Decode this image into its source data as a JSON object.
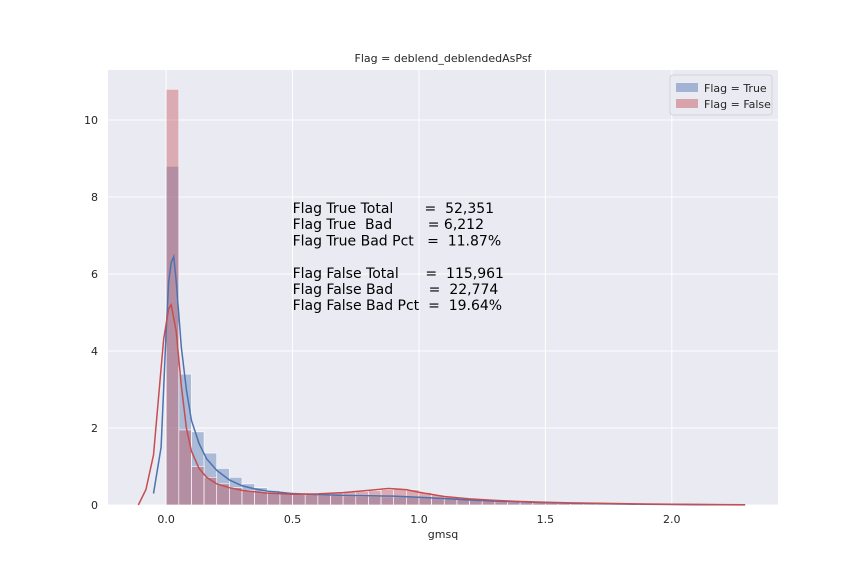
{
  "chart_data": {
    "type": "histogram",
    "title": "Flag = deblend_deblendedAsPsf",
    "xlabel": "gmsq",
    "ylabel": "",
    "xlim": [
      -0.23,
      2.42
    ],
    "ylim": [
      0,
      11.3
    ],
    "x_ticks": [
      0.0,
      0.5,
      1.0,
      1.5,
      2.0
    ],
    "x_tick_labels": [
      "0.0",
      "0.5",
      "1.0",
      "1.5",
      "2.0"
    ],
    "y_ticks": [
      0,
      2,
      4,
      6,
      8,
      10
    ],
    "y_tick_labels": [
      "0",
      "2",
      "4",
      "6",
      "8",
      "10"
    ],
    "grid": true,
    "legend_position": "top-right",
    "bin_width": 0.05,
    "series": [
      {
        "name": "Flag = True",
        "color": "#4c72b0",
        "hist_bin_starts": [
          0.0,
          0.05,
          0.1,
          0.15,
          0.2,
          0.25,
          0.3,
          0.35,
          0.4,
          0.45,
          0.5,
          0.55,
          0.6,
          0.65,
          0.7,
          0.75,
          0.8,
          0.85,
          0.9,
          0.95,
          1.0,
          1.05,
          1.1,
          1.15,
          1.2,
          1.25,
          1.3,
          1.35,
          1.4,
          1.45,
          1.5,
          1.55,
          1.6,
          1.65,
          1.7,
          1.75,
          1.8,
          1.85,
          1.9,
          1.95,
          2.0,
          2.05,
          2.1,
          2.15,
          2.2,
          2.25
        ],
        "hist_values": [
          8.8,
          3.4,
          1.9,
          1.35,
          0.95,
          0.72,
          0.55,
          0.45,
          0.38,
          0.33,
          0.3,
          0.27,
          0.25,
          0.24,
          0.23,
          0.22,
          0.22,
          0.21,
          0.21,
          0.2,
          0.19,
          0.18,
          0.16,
          0.14,
          0.12,
          0.1,
          0.08,
          0.07,
          0.06,
          0.05,
          0.04,
          0.035,
          0.03,
          0.025,
          0.02,
          0.018,
          0.015,
          0.012,
          0.01,
          0.008,
          0.007,
          0.006,
          0.005,
          0.004,
          0.003,
          0.002
        ],
        "kde_x": [
          -0.05,
          -0.02,
          0.0,
          0.01,
          0.02,
          0.03,
          0.04,
          0.06,
          0.08,
          0.1,
          0.13,
          0.16,
          0.2,
          0.25,
          0.3,
          0.35,
          0.4,
          0.5,
          0.6,
          0.7,
          0.8,
          0.9,
          1.0,
          1.1,
          1.2,
          1.3,
          1.4,
          1.5,
          1.6,
          1.7,
          1.8,
          1.9,
          2.0,
          2.1,
          2.2,
          2.29
        ],
        "kde_y": [
          0.3,
          1.5,
          4.5,
          5.8,
          6.3,
          6.45,
          5.8,
          4.1,
          3.0,
          2.2,
          1.6,
          1.2,
          0.9,
          0.65,
          0.5,
          0.42,
          0.36,
          0.3,
          0.27,
          0.25,
          0.24,
          0.23,
          0.2,
          0.17,
          0.13,
          0.1,
          0.08,
          0.06,
          0.045,
          0.035,
          0.025,
          0.018,
          0.012,
          0.008,
          0.005,
          0.003
        ]
      },
      {
        "name": "Flag = False",
        "color": "#c44e52",
        "hist_bin_starts": [
          0.0,
          0.05,
          0.1,
          0.15,
          0.2,
          0.25,
          0.3,
          0.35,
          0.4,
          0.45,
          0.5,
          0.55,
          0.6,
          0.65,
          0.7,
          0.75,
          0.8,
          0.85,
          0.9,
          0.95,
          1.0,
          1.05,
          1.1,
          1.15,
          1.2,
          1.25,
          1.3,
          1.35,
          1.4,
          1.45,
          1.5,
          1.55,
          1.6,
          1.65,
          1.7,
          1.75,
          1.8,
          1.85,
          1.9,
          1.95,
          2.0,
          2.05,
          2.1,
          2.15,
          2.2,
          2.25
        ],
        "hist_values": [
          10.8,
          1.95,
          1.0,
          0.72,
          0.55,
          0.45,
          0.38,
          0.34,
          0.32,
          0.3,
          0.29,
          0.29,
          0.3,
          0.31,
          0.33,
          0.35,
          0.37,
          0.4,
          0.42,
          0.4,
          0.33,
          0.26,
          0.2,
          0.16,
          0.13,
          0.11,
          0.09,
          0.08,
          0.07,
          0.06,
          0.05,
          0.045,
          0.04,
          0.035,
          0.03,
          0.025,
          0.02,
          0.018,
          0.015,
          0.012,
          0.01,
          0.008,
          0.007,
          0.006,
          0.005,
          0.004
        ],
        "kde_x": [
          -0.11,
          -0.08,
          -0.05,
          -0.03,
          -0.01,
          0.01,
          0.02,
          0.04,
          0.06,
          0.08,
          0.1,
          0.13,
          0.16,
          0.2,
          0.25,
          0.3,
          0.4,
          0.5,
          0.6,
          0.7,
          0.8,
          0.88,
          0.95,
          1.0,
          1.1,
          1.2,
          1.3,
          1.4,
          1.5,
          1.6,
          1.7,
          1.8,
          1.9,
          2.0,
          2.1,
          2.2,
          2.29
        ],
        "kde_y": [
          0.0,
          0.4,
          1.3,
          2.8,
          4.3,
          5.1,
          5.2,
          4.5,
          3.1,
          2.0,
          1.4,
          0.95,
          0.72,
          0.55,
          0.45,
          0.38,
          0.31,
          0.28,
          0.29,
          0.32,
          0.38,
          0.43,
          0.4,
          0.33,
          0.22,
          0.16,
          0.12,
          0.09,
          0.07,
          0.055,
          0.045,
          0.035,
          0.025,
          0.02,
          0.015,
          0.01,
          0.005
        ]
      }
    ],
    "annotation_lines": [
      "Flag True Total       =  52,351",
      "Flag True  Bad        = 6,212",
      "Flag True Bad Pct   =  11.87%",
      "",
      "Flag False Total      =  115,961",
      "Flag False Bad        =  22,774",
      "Flag False Bad Pct  =  19.64%"
    ]
  }
}
